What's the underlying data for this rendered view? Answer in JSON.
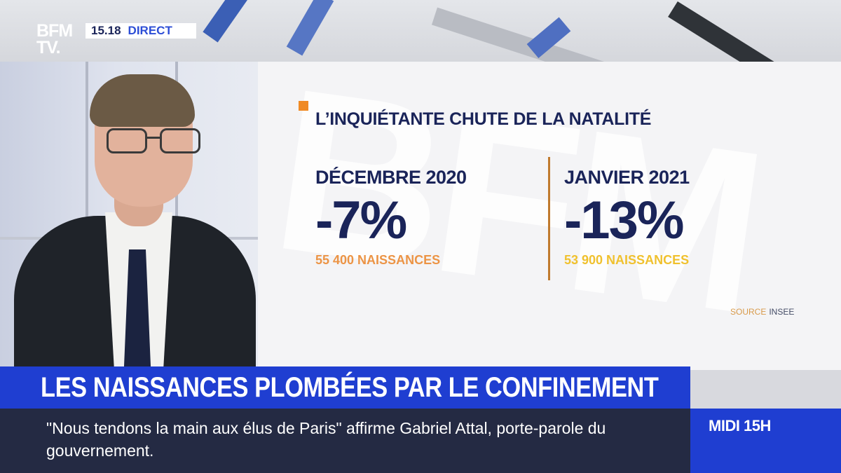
{
  "channel": {
    "logo_line1": "BFM",
    "logo_line2": "TV.",
    "time": "15.18",
    "live_label": "DIRECT"
  },
  "infographic": {
    "title": "L’INQUIÉTANTE CHUTE DE LA NATALITÉ",
    "watermark": "BFM",
    "columns": [
      {
        "period": "DÉCEMBRE 2020",
        "change": "-7%",
        "births": "55 400 NAISSANCES"
      },
      {
        "period": "JANVIER 2021",
        "change": "-13%",
        "births": "53 900 NAISSANCES"
      }
    ],
    "source_label": "SOURCE",
    "source_value": "INSEE"
  },
  "lower_third": {
    "headline": "LES NAISSANCES PLOMBÉES PAR LE CONFINEMENT",
    "ticker": "\"Nous tendons la main aux élus de Paris\" affirme Gabriel Attal, porte-parole du gouvernement.",
    "show": "MIDI 15H"
  },
  "colors": {
    "navy": "#1a2459",
    "brand_blue": "#1f3ed1",
    "ticker_bg": "#242a43",
    "accent_orange": "#ec9445",
    "accent_yellow": "#f0c12e"
  }
}
